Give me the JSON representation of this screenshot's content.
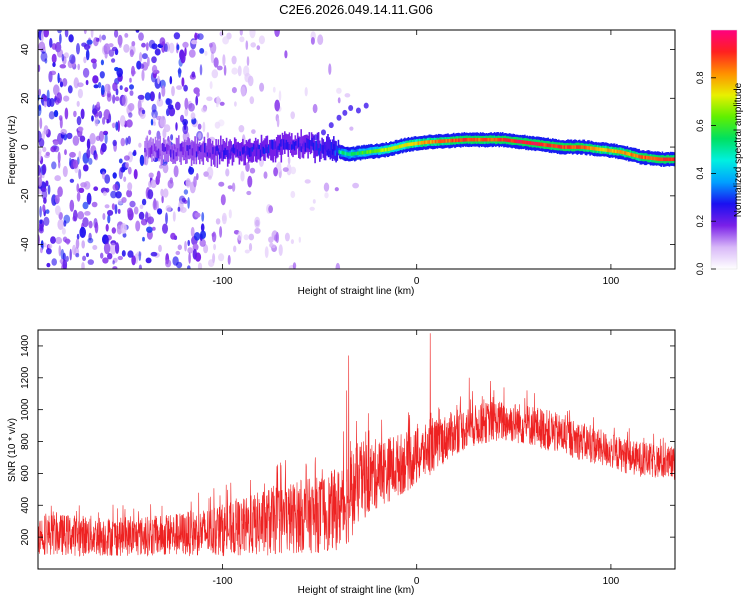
{
  "title": "C2E6.2026.049.14.11.G06",
  "chart_data": [
    {
      "type": "heatmap",
      "title": "C2E6.2026.049.14.11.G06",
      "xlabel": "Height of straight line (km)",
      "ylabel": "Frequency (Hz)",
      "xlim": [
        -195,
        133
      ],
      "ylim": [
        -50,
        48
      ],
      "xticks": [
        -100,
        0,
        100
      ],
      "xtick_labels": [
        "-100",
        "0",
        "100"
      ],
      "yticks": [
        -40,
        -20,
        0,
        20,
        40
      ],
      "ytick_labels": [
        "-40",
        "-20",
        "0",
        "20",
        "40"
      ],
      "colorbar": {
        "label": "Normalized spectral amplitude",
        "range": [
          0.0,
          1.0
        ],
        "ticks": [
          0.0,
          0.2,
          0.4,
          0.6,
          0.8
        ],
        "tick_labels": [
          "0.0",
          "0.2",
          "0.4",
          "0.6",
          "0.8"
        ],
        "colormap": [
          "#ffffff",
          "#d8b8f8",
          "#7a20e8",
          "#1a10f0",
          "#00a0ff",
          "#00f0e0",
          "#00e060",
          "#60f000",
          "#e8f000",
          "#ff9000",
          "#ff2020",
          "#ff0080"
        ]
      },
      "ridge": {
        "description_source": "frequency of peak amplitude vs height",
        "x": [
          -140,
          -120,
          -100,
          -80,
          -60,
          -45,
          -35,
          -25,
          -15,
          -5,
          5,
          15,
          25,
          35,
          45,
          55,
          65,
          75,
          85,
          95,
          105,
          115,
          125,
          133
        ],
        "y": [
          -1,
          -1.5,
          -2,
          -1,
          1,
          -1,
          -3,
          -2,
          -1,
          1,
          2,
          2.5,
          3,
          3,
          3,
          2,
          1,
          0,
          0,
          -1,
          -2,
          -4,
          -5,
          -5
        ],
        "amplitude": [
          0.25,
          0.3,
          0.35,
          0.38,
          0.35,
          0.45,
          0.55,
          0.6,
          0.7,
          0.75,
          0.8,
          0.85,
          0.9,
          0.85,
          0.9,
          0.95,
          0.9,
          0.9,
          0.85,
          0.8,
          0.8,
          0.85,
          0.9,
          0.9
        ]
      }
    },
    {
      "type": "line",
      "xlabel": "Height of straight line (km)",
      "ylabel": "SNR (10 * v/v)",
      "xlim": [
        -195,
        133
      ],
      "ylim": [
        0,
        1500
      ],
      "xticks": [
        -100,
        0,
        100
      ],
      "xtick_labels": [
        "-100",
        "0",
        "100"
      ],
      "yticks": [
        200,
        400,
        600,
        800,
        1000,
        1200,
        1400
      ],
      "ytick_labels": [
        "200",
        "400",
        "600",
        "800",
        "1000",
        "1200",
        "1400"
      ],
      "color": "#ee2222",
      "envelope": {
        "x": [
          -195,
          -170,
          -150,
          -130,
          -110,
          -90,
          -75,
          -60,
          -50,
          -40,
          -35,
          -30,
          -20,
          -10,
          0,
          10,
          20,
          30,
          40,
          50,
          60,
          70,
          80,
          90,
          100,
          110,
          120,
          133
        ],
        "mean": [
          220,
          210,
          200,
          210,
          230,
          260,
          300,
          330,
          340,
          380,
          440,
          540,
          600,
          650,
          700,
          780,
          860,
          900,
          930,
          920,
          900,
          860,
          820,
          780,
          740,
          700,
          680,
          660
        ],
        "spread": [
          130,
          130,
          120,
          130,
          150,
          180,
          220,
          230,
          240,
          260,
          280,
          260,
          220,
          200,
          180,
          160,
          140,
          130,
          130,
          130,
          130,
          130,
          120,
          120,
          110,
          110,
          110,
          110
        ]
      },
      "notable_peaks": [
        {
          "x": -36,
          "y": 1120
        },
        {
          "x": -35,
          "y": 1340
        },
        {
          "x": 7,
          "y": 1480
        },
        {
          "x": 27,
          "y": 1200
        },
        {
          "x": 38,
          "y": 1180
        },
        {
          "x": 45,
          "y": 1140
        }
      ]
    }
  ]
}
